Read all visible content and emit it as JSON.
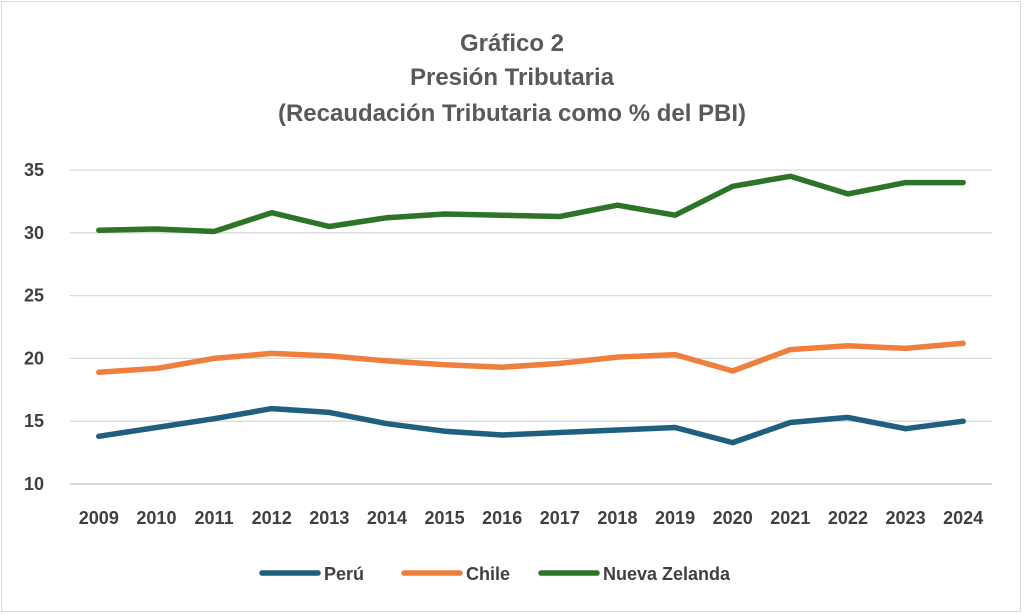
{
  "chart_data": {
    "type": "line",
    "title": [
      "Gráfico 2",
      "Presión Tributaria",
      "(Recaudación Tributaria como % del PBI)"
    ],
    "xlabel": "",
    "ylabel": "",
    "ylim": [
      10,
      35
    ],
    "yticks": [
      10,
      15,
      20,
      25,
      30,
      35
    ],
    "grid": true,
    "legend_position": "bottom",
    "categories": [
      "2009",
      "2010",
      "2011",
      "2012",
      "2013",
      "2014",
      "2015",
      "2016",
      "2017",
      "2018",
      "2019",
      "2020",
      "2021",
      "2022",
      "2023",
      "2024"
    ],
    "series": [
      {
        "name": "Perú",
        "color": "#1f5f7f",
        "values": [
          13.8,
          14.5,
          15.2,
          16.0,
          15.7,
          14.8,
          14.2,
          13.9,
          14.1,
          14.3,
          14.5,
          13.3,
          14.9,
          15.3,
          14.4,
          15.0
        ]
      },
      {
        "name": "Chile",
        "color": "#ef7f3c",
        "values": [
          18.9,
          19.2,
          20.0,
          20.4,
          20.2,
          19.8,
          19.5,
          19.3,
          19.6,
          20.1,
          20.3,
          19.0,
          20.7,
          21.0,
          20.8,
          21.2
        ]
      },
      {
        "name": "Nueva Zelanda",
        "color": "#2e7428",
        "values": [
          30.2,
          30.3,
          30.1,
          31.6,
          30.5,
          31.2,
          31.5,
          31.4,
          31.3,
          32.2,
          31.4,
          33.7,
          34.5,
          33.1,
          34.0,
          34.0
        ]
      }
    ]
  }
}
